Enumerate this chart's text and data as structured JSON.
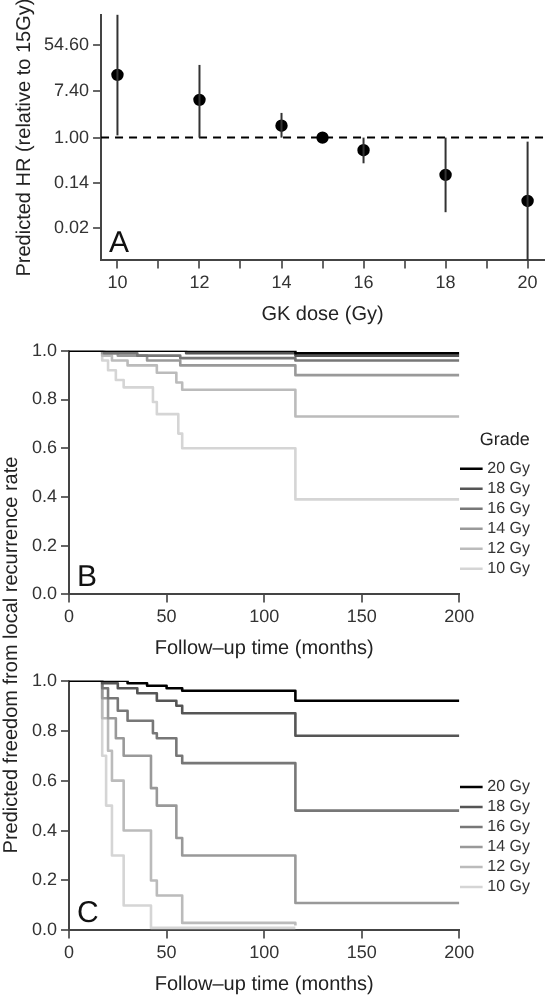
{
  "chart_data": [
    {
      "type": "scatter",
      "xlabel": "GK dose (Gy)",
      "ylabel": "Predicted HR (relative to 15Gy)",
      "annotations": [
        "A"
      ],
      "marker": "circle",
      "color": "#000000",
      "x": [
        10,
        12,
        14,
        15,
        16,
        18,
        20
      ],
      "values": [
        15,
        5.1,
        1.67,
        1,
        0.58,
        0.2,
        0.065
      ],
      "errors": [
        [
          1.1,
          200
        ],
        [
          1,
          23
        ],
        [
          1,
          2.9
        ],
        null,
        [
          0.33,
          1
        ],
        [
          0.04,
          1
        ],
        [
          0.005,
          0.84
        ]
      ],
      "log": "y",
      "xlim": [
        9.6,
        20.4
      ],
      "ylim": [
        0.005,
        200
      ],
      "xticks": [
        10,
        {
          "value": 11,
          "label": null
        },
        12,
        {
          "value": 13,
          "label": null
        },
        14,
        {
          "value": 15,
          "label": null
        },
        16,
        {
          "value": 17,
          "label": null
        },
        18,
        {
          "value": 19,
          "label": null
        },
        20
      ],
      "yticks": [
        {
          "value": 0.02,
          "label": "0.02"
        },
        {
          "value": 0.14,
          "label": "0.14"
        },
        {
          "value": 1,
          "label": "1.00"
        },
        {
          "value": 7.4,
          "label": "7.40"
        },
        {
          "value": 54.6,
          "label": "54.60"
        }
      ],
      "ref_lines": [
        {
          "axis": "y",
          "value": 1,
          "line_style": "dashed",
          "color": "#000000"
        }
      ],
      "grid": false
    },
    {
      "type": "step",
      "xlabel": "Follow–up time (months)",
      "ylabel": "Predicted freedom from local recurrence rate",
      "legend_title": "Grade",
      "legend": "right",
      "annotations": [
        "B"
      ],
      "marker": "none",
      "grid": false,
      "xlim": [
        0,
        200
      ],
      "ylim": [
        0,
        1
      ],
      "xticks": [
        0,
        50,
        100,
        150,
        200
      ],
      "yticks": [
        {
          "value": 0,
          "label": "0.0"
        },
        {
          "value": 0.2,
          "label": "0.2"
        },
        {
          "value": 0.4,
          "label": "0.4"
        },
        {
          "value": 0.6,
          "label": "0.6"
        },
        {
          "value": 0.8,
          "label": "0.8"
        },
        {
          "value": 1,
          "label": "1.0"
        }
      ],
      "series": [
        {
          "name": "20 Gy",
          "color": "#000000",
          "x": [
            0,
            116,
            200
          ],
          "values": [
            1,
            0.99,
            0.99
          ]
        },
        {
          "name": "18 Gy",
          "color": "#555555",
          "x": [
            0,
            60,
            116,
            200
          ],
          "values": [
            1,
            0.99,
            0.98,
            0.98
          ]
        },
        {
          "name": "16 Gy",
          "color": "#777777",
          "x": [
            0,
            18,
            35,
            57,
            116,
            200
          ],
          "values": [
            1,
            0.99,
            0.98,
            0.97,
            0.96,
            0.96
          ]
        },
        {
          "name": "14 Gy",
          "color": "#999999",
          "x": [
            0,
            17,
            25,
            40,
            57,
            116,
            200
          ],
          "values": [
            1,
            0.99,
            0.98,
            0.96,
            0.94,
            0.9,
            0.9
          ]
        },
        {
          "name": "12 Gy",
          "color": "#bbbbbb",
          "x": [
            0,
            17,
            22,
            30,
            45,
            55,
            58,
            116,
            200
          ],
          "values": [
            1,
            0.98,
            0.96,
            0.94,
            0.91,
            0.87,
            0.84,
            0.73,
            0.73
          ]
        },
        {
          "name": "10 Gy",
          "color": "#d5d5d5",
          "x": [
            0,
            17,
            20,
            24,
            28,
            43,
            45,
            56,
            58,
            116,
            200
          ],
          "values": [
            1,
            0.96,
            0.92,
            0.88,
            0.85,
            0.79,
            0.74,
            0.66,
            0.6,
            0.39,
            0.39
          ]
        }
      ]
    },
    {
      "type": "step",
      "xlabel": "Follow–up time (months)",
      "legend": "right",
      "annotations": [
        "C"
      ],
      "marker": "none",
      "grid": false,
      "xlim": [
        0,
        200
      ],
      "ylim": [
        0,
        1
      ],
      "xticks": [
        0,
        50,
        100,
        150,
        200
      ],
      "yticks": [
        {
          "value": 0,
          "label": "0.0"
        },
        {
          "value": 0.2,
          "label": "0.2"
        },
        {
          "value": 0.4,
          "label": "0.4"
        },
        {
          "value": 0.6,
          "label": "0.6"
        },
        {
          "value": 0.8,
          "label": "0.8"
        },
        {
          "value": 1,
          "label": "1.0"
        }
      ],
      "series": [
        {
          "name": "20 Gy",
          "color": "#000000",
          "x": [
            0,
            30,
            40,
            50,
            58,
            116,
            200
          ],
          "values": [
            1,
            0.99,
            0.98,
            0.97,
            0.96,
            0.92,
            0.92
          ]
        },
        {
          "name": "18 Gy",
          "color": "#555555",
          "x": [
            0,
            17,
            25,
            35,
            45,
            55,
            58,
            116,
            200
          ],
          "values": [
            1,
            0.99,
            0.97,
            0.95,
            0.92,
            0.9,
            0.87,
            0.78,
            0.78
          ]
        },
        {
          "name": "16 Gy",
          "color": "#777777",
          "x": [
            0,
            17,
            20,
            25,
            30,
            43,
            45,
            55,
            58,
            116,
            200
          ],
          "values": [
            1,
            0.97,
            0.93,
            0.88,
            0.84,
            0.79,
            0.77,
            0.7,
            0.67,
            0.48,
            0.48
          ]
        },
        {
          "name": "14 Gy",
          "color": "#999999",
          "x": [
            0,
            17,
            20,
            24,
            28,
            42,
            45,
            55,
            58,
            116,
            200
          ],
          "values": [
            1,
            0.93,
            0.85,
            0.77,
            0.7,
            0.57,
            0.5,
            0.37,
            0.3,
            0.11,
            0.11
          ]
        },
        {
          "name": "12 Gy",
          "color": "#bbbbbb",
          "x": [
            0,
            17,
            20,
            22,
            28,
            42,
            45,
            58,
            116
          ],
          "values": [
            1,
            0.85,
            0.72,
            0.6,
            0.4,
            0.2,
            0.14,
            0.03,
            0.02
          ]
        },
        {
          "name": "10 Gy",
          "color": "#d5d5d5",
          "x": [
            0,
            17,
            19,
            22,
            28,
            42,
            116
          ],
          "values": [
            1,
            0.7,
            0.5,
            0.3,
            0.1,
            0.01,
            0.01
          ]
        }
      ]
    }
  ]
}
